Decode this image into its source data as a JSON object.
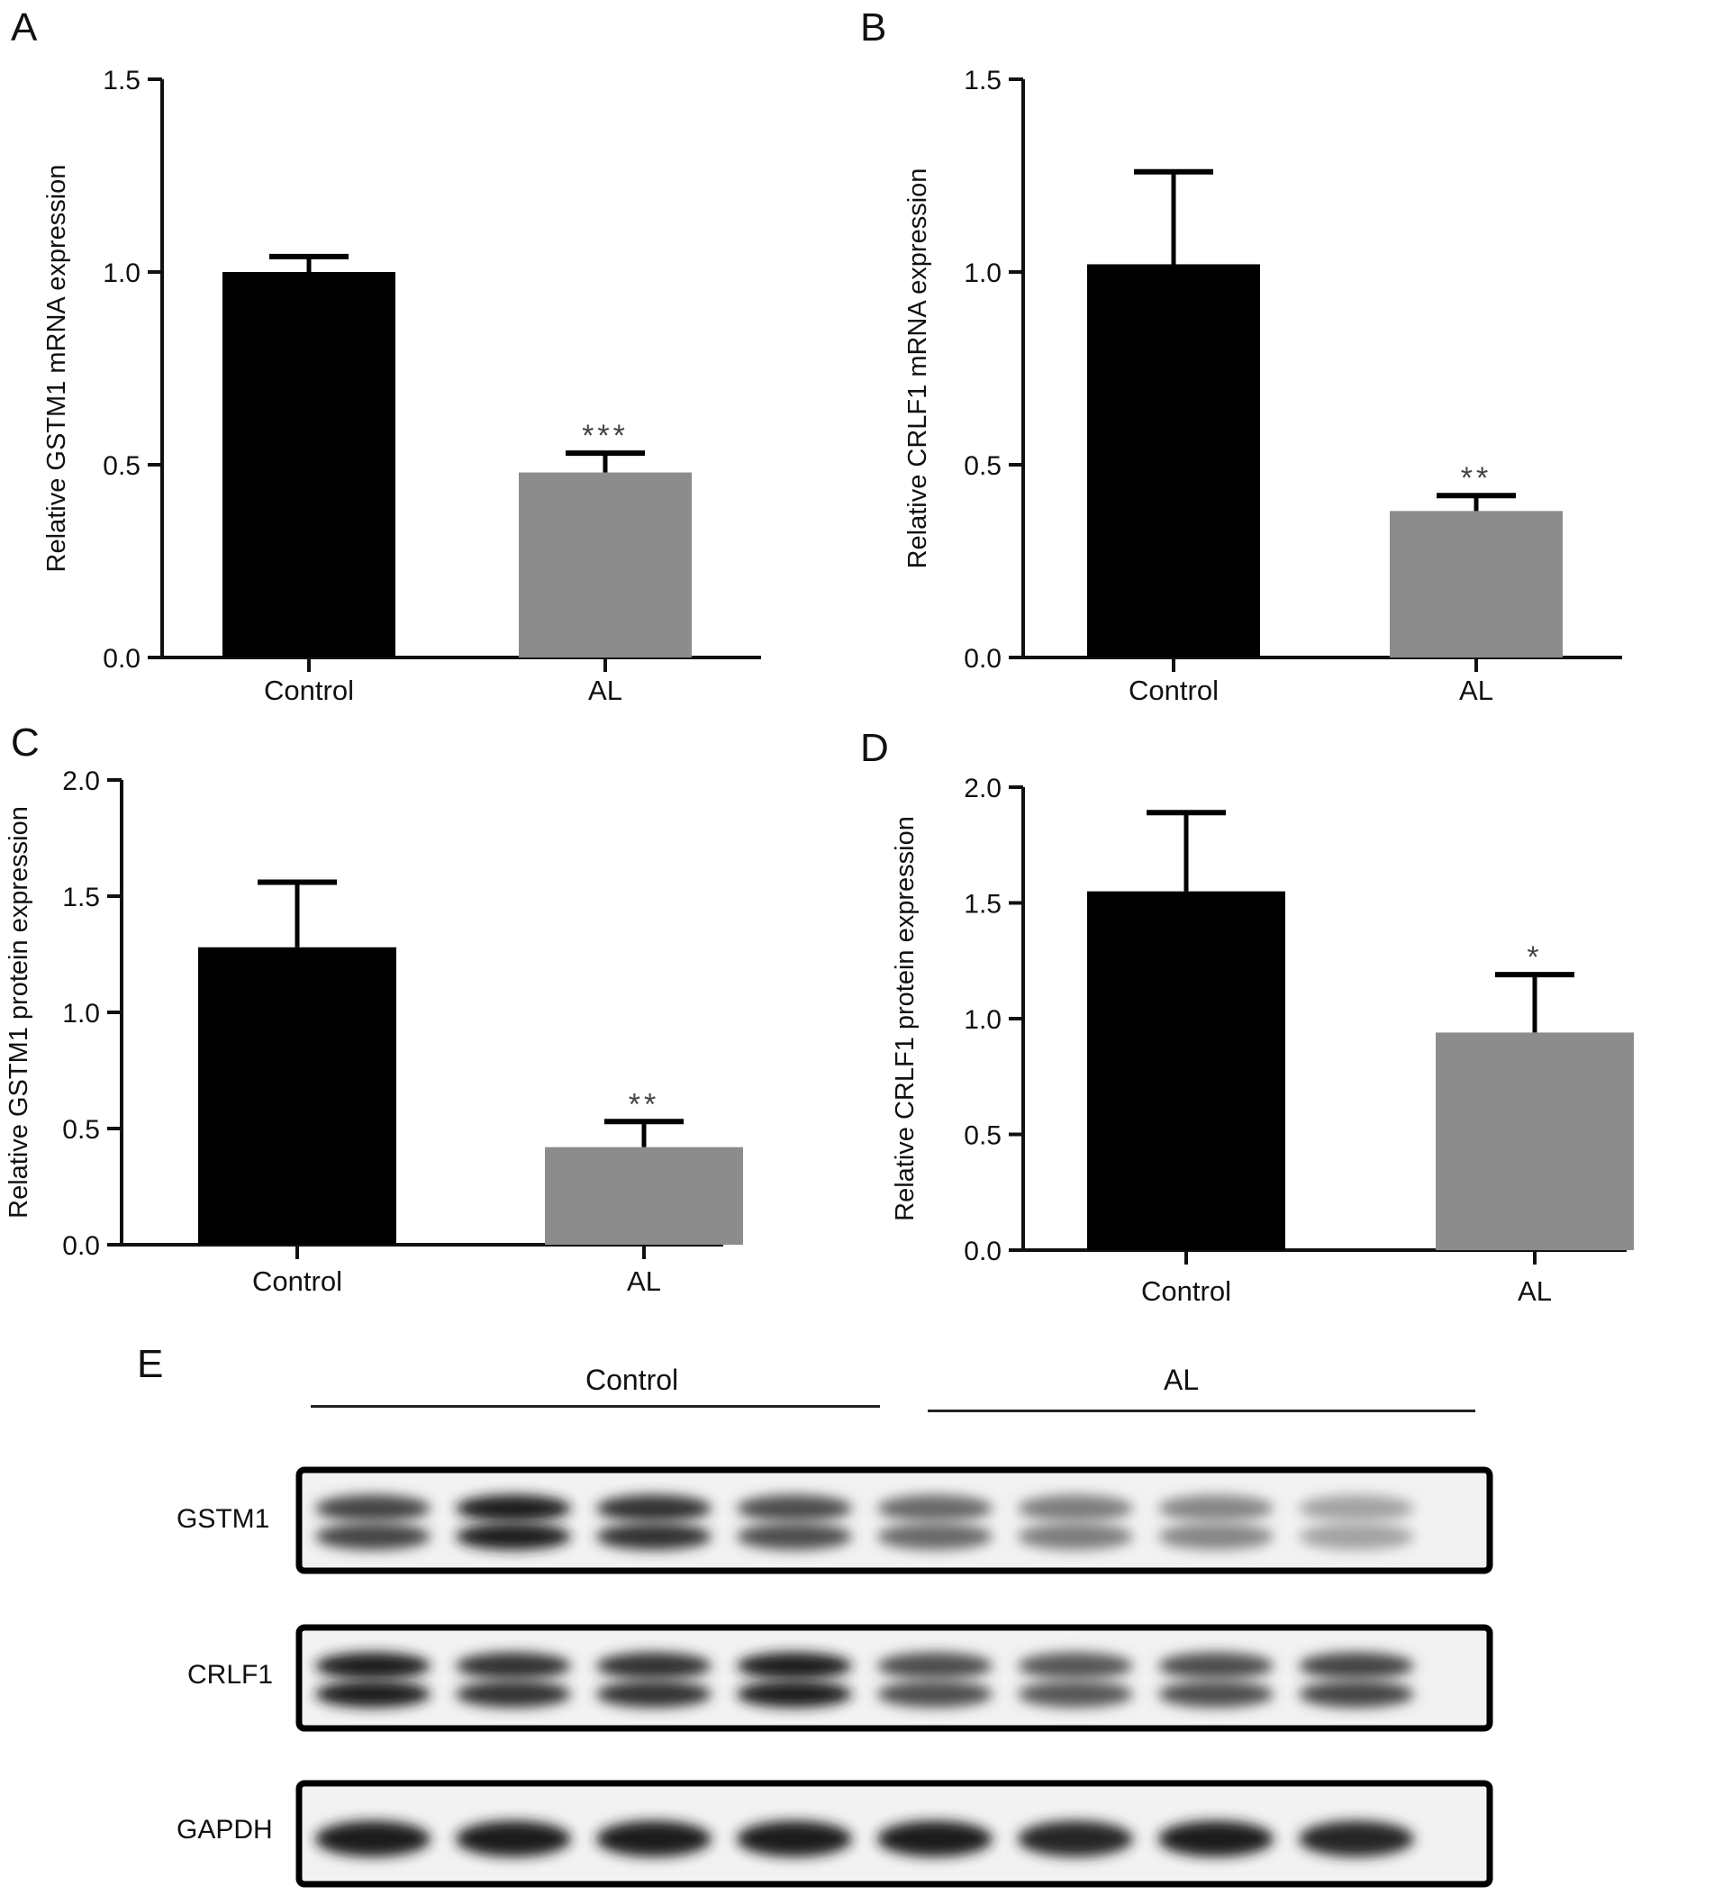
{
  "panels": {
    "A": "A",
    "B": "B",
    "C": "C",
    "D": "D",
    "E": "E"
  },
  "chart_data": [
    {
      "type": "bar",
      "panel": "A",
      "categories": [
        "Control",
        "AL"
      ],
      "values": [
        1.0,
        0.48
      ],
      "error": [
        0.04,
        0.05
      ],
      "significance": [
        "",
        "***"
      ],
      "ylabel": "Relative GSTM1 mRNA expression",
      "ylim": [
        0,
        1.5
      ],
      "yticks": [
        "0.0",
        "0.5",
        "1.0",
        "1.5"
      ],
      "colors": [
        "#000000",
        "#8c8c8c"
      ]
    },
    {
      "type": "bar",
      "panel": "B",
      "categories": [
        "Control",
        "AL"
      ],
      "values": [
        1.02,
        0.38
      ],
      "error": [
        0.24,
        0.04
      ],
      "significance": [
        "",
        "**"
      ],
      "ylabel": "Relative CRLF1 mRNA expression",
      "ylim": [
        0,
        1.5
      ],
      "yticks": [
        "0.0",
        "0.5",
        "1.0",
        "1.5"
      ],
      "colors": [
        "#000000",
        "#8c8c8c"
      ]
    },
    {
      "type": "bar",
      "panel": "C",
      "categories": [
        "Control",
        "AL"
      ],
      "values": [
        1.28,
        0.42
      ],
      "error": [
        0.28,
        0.11
      ],
      "significance": [
        "",
        "**"
      ],
      "ylabel": "Relative GSTM1 protein expression",
      "ylim": [
        0,
        2.0
      ],
      "yticks": [
        "0.0",
        "0.5",
        "1.0",
        "1.5",
        "2.0"
      ],
      "colors": [
        "#000000",
        "#8c8c8c"
      ]
    },
    {
      "type": "bar",
      "panel": "D",
      "categories": [
        "Control",
        "AL"
      ],
      "values": [
        1.55,
        0.94
      ],
      "error": [
        0.34,
        0.25
      ],
      "significance": [
        "",
        "*"
      ],
      "ylabel": "Relative CRLF1 protein expression",
      "ylim": [
        0,
        2.0
      ],
      "yticks": [
        "0.0",
        "0.5",
        "1.0",
        "1.5",
        "2.0"
      ],
      "colors": [
        "#000000",
        "#8c8c8c"
      ]
    }
  ],
  "blot": {
    "groups": [
      "Control",
      "AL"
    ],
    "rows": [
      {
        "label": "GSTM1",
        "intensity": [
          0.75,
          0.95,
          0.85,
          0.7,
          0.55,
          0.45,
          0.4,
          0.25
        ]
      },
      {
        "label": "CRLF1",
        "intensity": [
          0.95,
          0.85,
          0.85,
          0.95,
          0.7,
          0.65,
          0.7,
          0.75
        ]
      },
      {
        "label": "GAPDH",
        "intensity": [
          0.95,
          0.95,
          0.95,
          0.95,
          0.95,
          0.9,
          0.95,
          0.9
        ]
      }
    ]
  }
}
